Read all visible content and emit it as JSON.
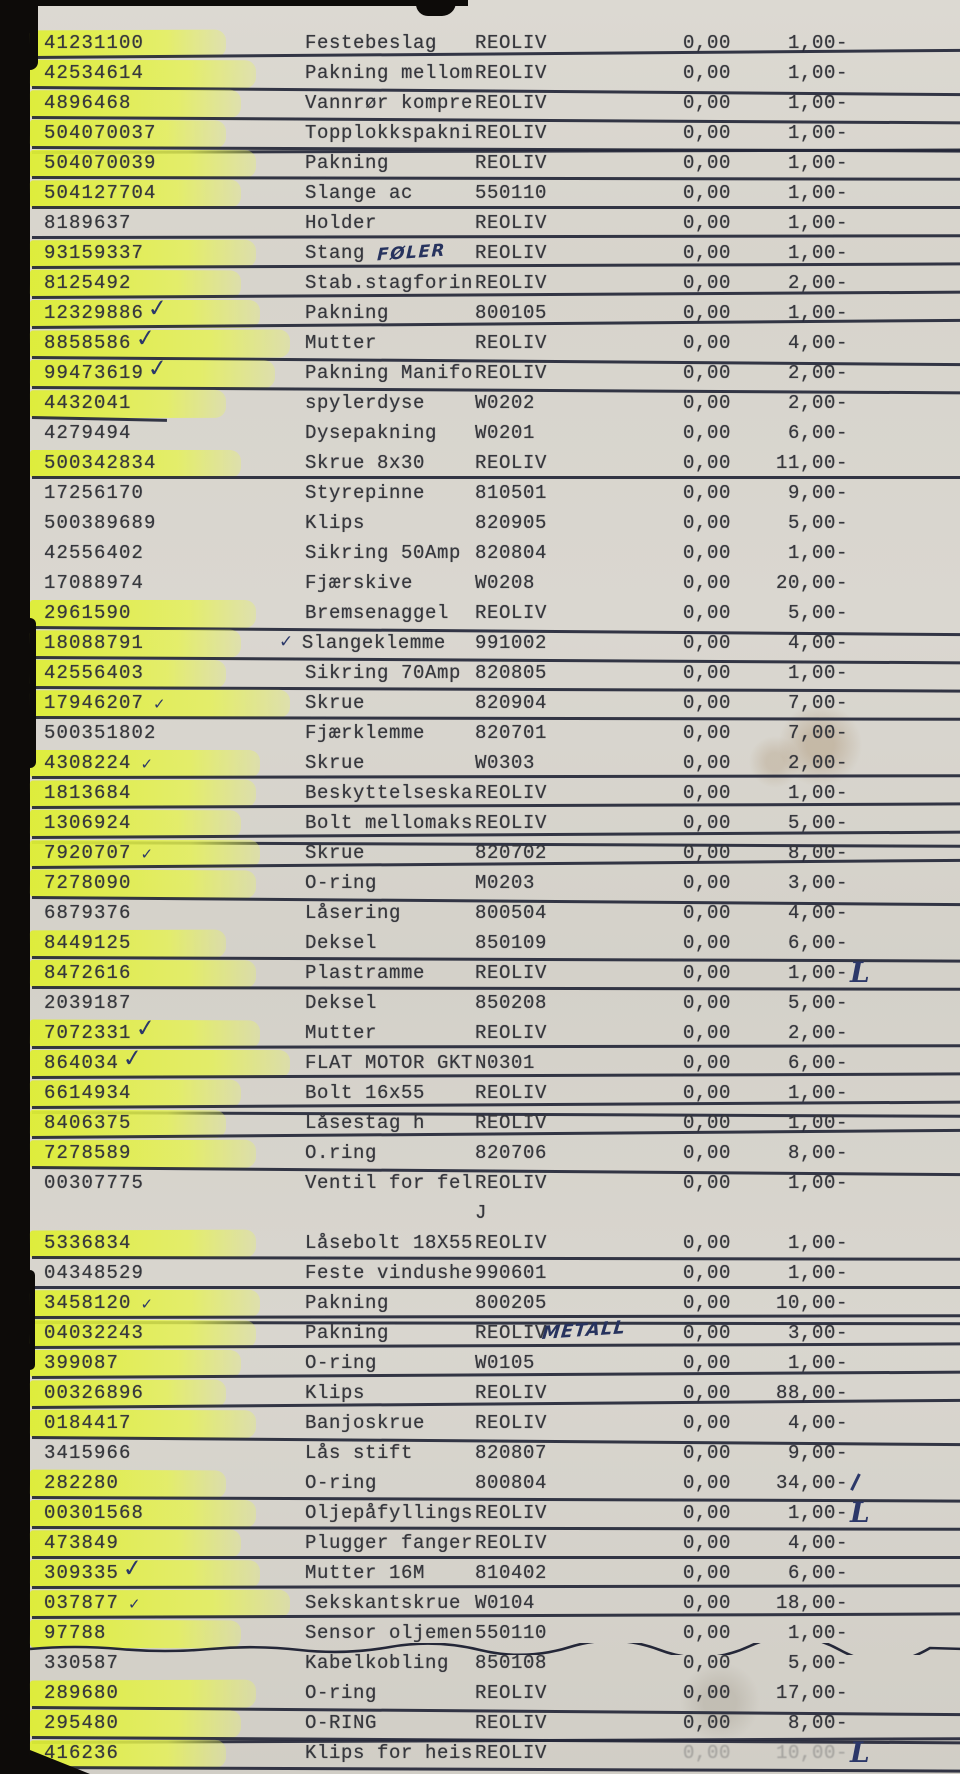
{
  "document": {
    "kind": "scanned-parts-list",
    "columns": [
      "part_number",
      "description",
      "code",
      "qty",
      "price"
    ],
    "colors": {
      "paper": "#d8d5ce",
      "highlighter": "#e3ee4f",
      "typewriter_ink": "#36373d",
      "pen_ink": "#2c3869",
      "strike_line": "#242738",
      "scan_edge": "#0d0b09"
    },
    "rows": [
      {
        "num": "41231100",
        "hl": 1,
        "desc": "Festebeslag",
        "code": "REOLIV",
        "qty": "0,00",
        "price": "1,00-",
        "strike": "single"
      },
      {
        "num": "42534614",
        "hl": 1,
        "desc": "Pakning mellom",
        "code": "REOLIV",
        "qty": "0,00",
        "price": "1,00-",
        "strike": "single"
      },
      {
        "num": "4896468",
        "hl": 1,
        "desc": "Vannrør kompre",
        "code": "REOLIV",
        "qty": "0,00",
        "price": "1,00-",
        "strike": "single"
      },
      {
        "num": "504070037",
        "hl": 1,
        "desc": "Topplokkspakni",
        "code": "REOLIV",
        "qty": "0,00",
        "price": "1,00-",
        "strike": "double"
      },
      {
        "num": "504070039",
        "hl": 1,
        "desc": "Pakning",
        "code": "REOLIV",
        "qty": "0,00",
        "price": "1,00-",
        "strike": "single"
      },
      {
        "num": "504127704",
        "hl": 1,
        "desc": "Slange ac",
        "code": "550110",
        "qty": "0,00",
        "price": "1,00-",
        "strike": "single"
      },
      {
        "num": "8189637",
        "hl": 0,
        "desc": "Holder",
        "code": "REOLIV",
        "qty": "0,00",
        "price": "1,00-",
        "strike": "single"
      },
      {
        "num": "93159337",
        "hl": 1,
        "desc": "Stang",
        "note": "FØLER",
        "code": "REOLIV",
        "qty": "0,00",
        "price": "1,00-",
        "strike": "single"
      },
      {
        "num": "8125492",
        "hl": 1,
        "desc": "Stab.stagforin",
        "code": "REOLIV",
        "qty": "0,00",
        "price": "2,00-",
        "strike": "single"
      },
      {
        "num": "12329886",
        "hl": 1,
        "chk": "big",
        "desc": "Pakning",
        "code": "800105",
        "qty": "0,00",
        "price": "1,00-",
        "strike": "single"
      },
      {
        "num": "8858586",
        "hl": 1,
        "chk": "big",
        "desc": "Mutter",
        "code": "REOLIV",
        "qty": "0,00",
        "price": "4,00-",
        "strike": "single"
      },
      {
        "num": "99473619",
        "hl": 1,
        "chk": "big",
        "desc": "Pakning Manifo",
        "code": "REOLIV",
        "qty": "0,00",
        "price": "2,00-",
        "strike": "single"
      },
      {
        "num": "4432041",
        "hl": 1,
        "desc": "spylerdyse",
        "code": "W0202",
        "qty": "0,00",
        "price": "2,00-",
        "strike": "partial"
      },
      {
        "num": "4279494",
        "hl": 0,
        "desc": "Dysepakning",
        "code": "W0201",
        "qty": "0,00",
        "price": "6,00-",
        "strike": "none"
      },
      {
        "num": "500342834",
        "hl": 1,
        "desc": "Skrue 8x30",
        "code": "REOLIV",
        "qty": "0,00",
        "price": "11,00-",
        "strike": "single"
      },
      {
        "num": "17256170",
        "hl": 0,
        "desc": "Styrepinne",
        "code": "810501",
        "qty": "0,00",
        "price": "9,00-",
        "strike": "none"
      },
      {
        "num": "500389689",
        "hl": 0,
        "desc": "Klips",
        "code": "820905",
        "qty": "0,00",
        "price": "5,00-",
        "strike": "none"
      },
      {
        "num": "42556402",
        "hl": 0,
        "desc": "Sikring 50Amp",
        "code": "820804",
        "qty": "0,00",
        "price": "1,00-",
        "strike": "none"
      },
      {
        "num": "17088974",
        "hl": 0,
        "desc": "Fjærskive",
        "code": "W0208",
        "qty": "0,00",
        "price": "20,00-",
        "strike": "none"
      },
      {
        "num": "2961590",
        "hl": 1,
        "desc": "Bremsenaggel",
        "code": "REOLIV",
        "qty": "0,00",
        "price": "5,00-",
        "strike": "single"
      },
      {
        "num": "18088791",
        "hl": 1,
        "pre": 1,
        "desc": "Slangeklemme",
        "code": "991002",
        "qty": "0,00",
        "price": "4,00-",
        "strike": "single"
      },
      {
        "num": "42556403",
        "hl": 1,
        "desc": "Sikring 70Amp",
        "code": "820805",
        "qty": "0,00",
        "price": "1,00-",
        "strike": "single"
      },
      {
        "num": "17946207",
        "hl": 1,
        "chk": "small",
        "desc": "Skrue",
        "code": "820904",
        "qty": "0,00",
        "price": "7,00-",
        "strike": "single"
      },
      {
        "num": "500351802",
        "hl": 0,
        "desc": "Fjærklemme",
        "code": "820701",
        "qty": "0,00",
        "price": "7,00-",
        "strike": "none"
      },
      {
        "num": "4308224",
        "hl": 1,
        "chk": "small",
        "desc": "Skrue",
        "code": "W0303",
        "qty": "0,00",
        "price": "2,00-",
        "strike": "single"
      },
      {
        "num": "1813684",
        "hl": 1,
        "desc": "Beskyttelseska",
        "code": "REOLIV",
        "qty": "0,00",
        "price": "1,00-",
        "strike": "single"
      },
      {
        "num": "1306924",
        "hl": 1,
        "desc": "Bolt mellomaks",
        "code": "REOLIV",
        "qty": "0,00",
        "price": "5,00-",
        "strike": "double"
      },
      {
        "num": "7920707",
        "hl": 1,
        "chk": "small",
        "desc": "Skrue",
        "code": "820702",
        "qty": "0,00",
        "price": "8,00-",
        "strike": "single"
      },
      {
        "num": "7278090",
        "hl": 1,
        "desc": "O-ring",
        "code": "M0203",
        "qty": "0,00",
        "price": "3,00-",
        "strike": "single"
      },
      {
        "num": "6879376",
        "hl": 0,
        "desc": "Låsering",
        "code": "800504",
        "qty": "0,00",
        "price": "4,00-",
        "strike": "none"
      },
      {
        "num": "8449125",
        "hl": 1,
        "desc": "Deksel",
        "code": "850109",
        "qty": "0,00",
        "price": "6,00-",
        "strike": "single"
      },
      {
        "num": "8472616",
        "hl": 1,
        "desc": "Plastramme",
        "code": "REOLIV",
        "qty": "0,00",
        "price": "1,00-",
        "strike": "single",
        "mark": "L"
      },
      {
        "num": "2039187",
        "hl": 0,
        "desc": "Deksel",
        "code": "850208",
        "qty": "0,00",
        "price": "5,00-",
        "strike": "none"
      },
      {
        "num": "7072331",
        "hl": 1,
        "chk": "big",
        "desc": "Mutter",
        "code": "REOLIV",
        "qty": "0,00",
        "price": "2,00-",
        "strike": "single"
      },
      {
        "num": "864034",
        "hl": 1,
        "chk": "big",
        "desc": "FLAT MOTOR GKT",
        "code": "N0301",
        "qty": "0,00",
        "price": "6,00-",
        "strike": "single"
      },
      {
        "num": "6614934",
        "hl": 1,
        "desc": "Bolt 16x55",
        "code": "REOLIV",
        "qty": "0,00",
        "price": "1,00-",
        "strike": "double"
      },
      {
        "num": "8406375",
        "hl": 1,
        "desc": "Låsestag h",
        "code": "REOLIV",
        "qty": "0,00",
        "price": "1,00-",
        "strike": "single"
      },
      {
        "num": "7278589",
        "hl": 1,
        "desc": "O.ring",
        "code": "820706",
        "qty": "0,00",
        "price": "8,00-",
        "strike": "single"
      },
      {
        "num": "00307775",
        "hl": 0,
        "desc": "Ventil for fel",
        "code": "REOLIV",
        "qty": "0,00",
        "price": "1,00-",
        "strike": "none"
      },
      {
        "cont": 1,
        "code": "J"
      },
      {
        "num": "5336834",
        "hl": 1,
        "desc": "Låsebolt 18X55",
        "code": "REOLIV",
        "qty": "0,00",
        "price": "1,00-",
        "strike": "single"
      },
      {
        "num": "04348529",
        "hl": 0,
        "desc": "Feste vindushe",
        "code": "990601",
        "qty": "0,00",
        "price": "1,00-",
        "strike": "single"
      },
      {
        "num": "3458120",
        "hl": 1,
        "chk": "small",
        "desc": "Pakning",
        "code": "800205",
        "qty": "0,00",
        "price": "10,00-",
        "strike": "double"
      },
      {
        "num": "04032243",
        "hl": 1,
        "desc": "Pakning",
        "code": "REOLIV",
        "note2": "METALL",
        "qty": "0,00",
        "price": "3,00-",
        "strike": "single"
      },
      {
        "num": "399087",
        "hl": 1,
        "desc": "O-ring",
        "code": "W0105",
        "qty": "0,00",
        "price": "1,00-",
        "strike": "single"
      },
      {
        "num": "00326896",
        "hl": 1,
        "desc": "Klips",
        "code": "REOLIV",
        "qty": "0,00",
        "price": "88,00-",
        "strike": "single"
      },
      {
        "num": "0184417",
        "hl": 1,
        "desc": "Banjoskrue",
        "code": "REOLIV",
        "qty": "0,00",
        "price": "4,00-",
        "strike": "single"
      },
      {
        "num": "3415966",
        "hl": 0,
        "desc": "Lås stift",
        "code": "820807",
        "qty": "0,00",
        "price": "9,00-",
        "strike": "none"
      },
      {
        "num": "282280",
        "hl": 1,
        "desc": "O-ring",
        "code": "800804",
        "qty": "0,00",
        "price": "34,00-",
        "strike": "single",
        "mark": "stroke"
      },
      {
        "num": "00301568",
        "hl": 1,
        "desc": "Oljepåfyllings",
        "code": "REOLIV",
        "qty": "0,00",
        "price": "1,00-",
        "strike": "single",
        "mark": "L"
      },
      {
        "num": "473849",
        "hl": 1,
        "desc": "Plugger fanger",
        "code": "REOLIV",
        "qty": "0,00",
        "price": "4,00-",
        "strike": "single"
      },
      {
        "num": "309335",
        "hl": 1,
        "chk": "big",
        "desc": "Mutter 16M",
        "code": "810402",
        "qty": "0,00",
        "price": "6,00-",
        "strike": "single"
      },
      {
        "num": "037877",
        "hl": 1,
        "chk": "small",
        "desc": "Sekskantskrue",
        "code": "W0104",
        "qty": "0,00",
        "price": "18,00-",
        "strike": "single"
      },
      {
        "num": "97788",
        "hl": 1,
        "desc": "Sensor oljemen",
        "code": "550110",
        "qty": "0,00",
        "price": "1,00-",
        "strike": "wavy"
      },
      {
        "num": "330587",
        "hl": 0,
        "desc": "Kabelkobling",
        "code": "850108",
        "qty": "0,00",
        "price": "5,00-",
        "strike": "none"
      },
      {
        "num": "289680",
        "hl": 1,
        "desc": "O-ring",
        "code": "REOLIV",
        "qty": "0,00",
        "price": "17,00-",
        "strike": "single"
      },
      {
        "num": "295480",
        "hl": 1,
        "desc": "O-RING",
        "code": "REOLIV",
        "qty": "0,00",
        "price": "8,00-",
        "strike": "double"
      },
      {
        "num": "416236",
        "hl": 1,
        "desc": "Klips for heis",
        "code": "REOLIV",
        "qty": "0,00",
        "price": "10,00-",
        "strike": "single",
        "mark": "L",
        "fade": 1
      }
    ]
  }
}
